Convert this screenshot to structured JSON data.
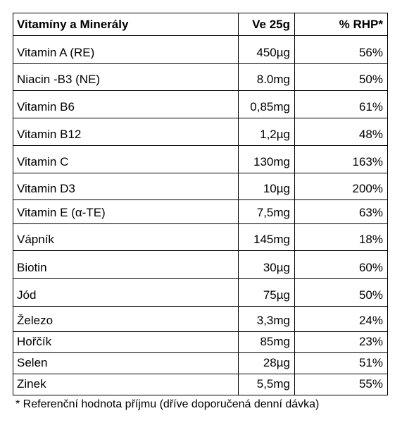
{
  "table": {
    "header": [
      "Vitamíny a Minerály",
      "Ve 25g",
      "% RHP*"
    ],
    "rows": [
      [
        "Vitamin A (RE)",
        "450µg",
        "56%"
      ],
      [
        "Niacin -B3 (NE)",
        "8.0mg",
        "50%"
      ],
      [
        "Vitamin B6",
        "0,85mg",
        "61%"
      ],
      [
        "Vitamin B12",
        "1,2µg",
        "48%"
      ],
      [
        "Vitamin C",
        "130mg",
        "163%"
      ],
      [
        "Vitamin D3",
        "10µg",
        "200%"
      ],
      [
        "Vitamin E (α-TE)",
        "7,5mg",
        "63%"
      ],
      [
        "Vápník",
        "145mg",
        "18%"
      ],
      [
        "Biotin",
        "30µg",
        "60%"
      ],
      [
        "Jód",
        "75µg",
        "50%"
      ],
      [
        "Železo",
        "3,3mg",
        "24%"
      ],
      [
        "Hořčík",
        "85mg",
        "23%"
      ],
      [
        "Selen",
        "28µg",
        "51%"
      ],
      [
        "Zinek",
        "5,5mg",
        "55%"
      ]
    ],
    "footnote": "* Referenční hodnota příjmu (dříve doporučená denní dávka)"
  }
}
